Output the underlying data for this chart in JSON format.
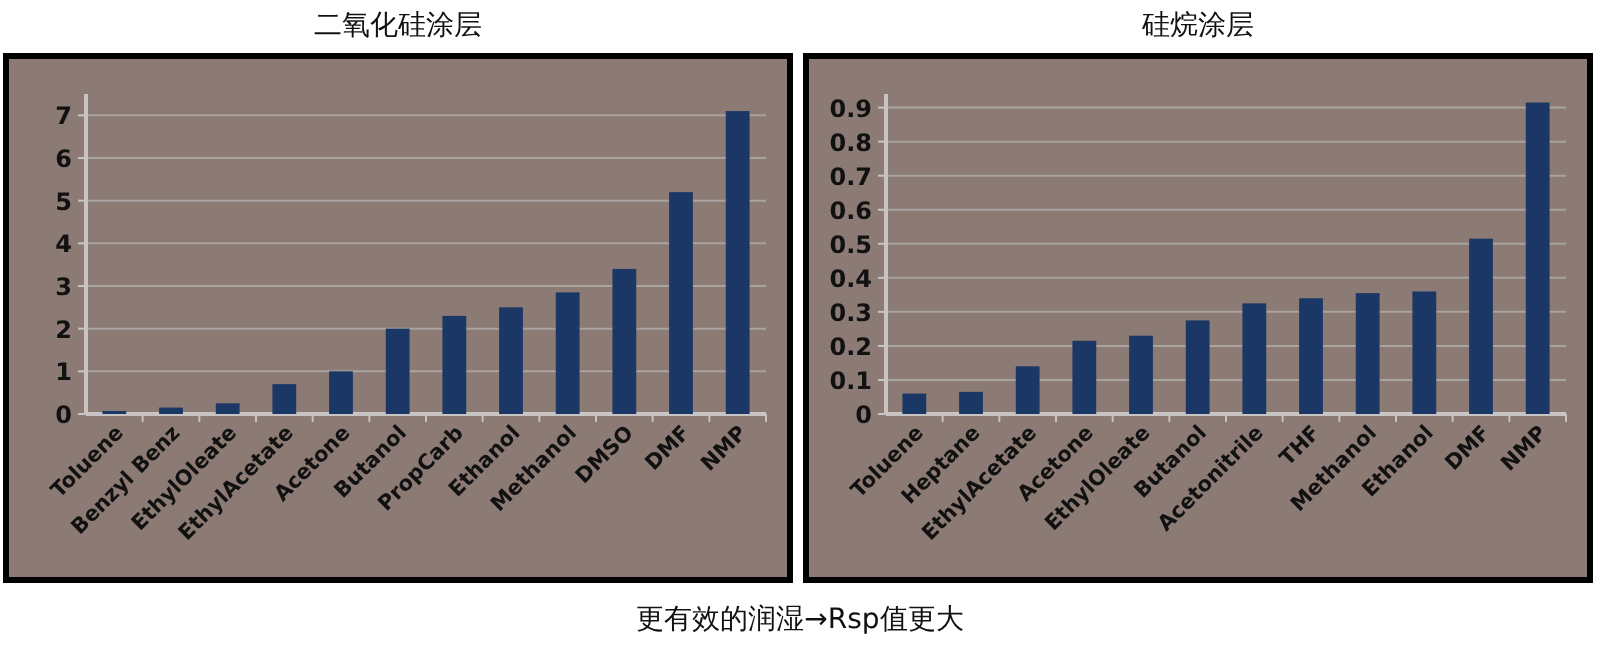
{
  "chart_data": [
    {
      "type": "bar",
      "title": "二氧化硅涂层",
      "categories": [
        "Toluene",
        "Benzyl Benz",
        "EthylOleate",
        "EthylAcetate",
        "Acetone",
        "Butanol",
        "PropCarb",
        "Ethanol",
        "Methanol",
        "DMSO",
        "DMF",
        "NMP"
      ],
      "values": [
        0.07,
        0.15,
        0.25,
        0.7,
        1.0,
        2.0,
        2.3,
        2.5,
        2.85,
        3.4,
        5.2,
        7.1
      ],
      "color": "#1b3765",
      "ylim": [
        0,
        7.5
      ],
      "yticks": [
        0,
        1,
        2,
        3,
        4,
        5,
        6,
        7
      ],
      "grid": "y",
      "annotations": [
        "更有效的润湿→Rsp值更大"
      ]
    },
    {
      "type": "bar",
      "title": "硅烷涂层",
      "categories": [
        "Toluene",
        "Heptane",
        "EthylAcetate",
        "Acetone",
        "EthylOleate",
        "Butanol",
        "Acetonitrile",
        "THF",
        "Methanol",
        "Ethanol",
        "DMF",
        "NMP"
      ],
      "values": [
        0.06,
        0.065,
        0.14,
        0.215,
        0.23,
        0.275,
        0.325,
        0.34,
        0.355,
        0.36,
        0.515,
        0.915
      ],
      "color": "#1b3765",
      "ylim": [
        0,
        0.94
      ],
      "yticks": [
        0,
        0.1,
        0.2,
        0.3,
        0.4,
        0.5,
        0.6,
        0.7,
        0.8,
        0.9
      ],
      "grid": "y"
    }
  ]
}
